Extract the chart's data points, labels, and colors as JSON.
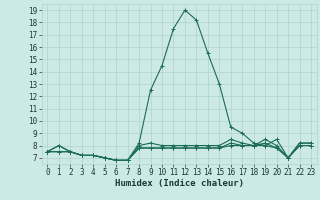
{
  "xlabel": "Humidex (Indice chaleur)",
  "ylabel": "",
  "bg_color": "#cce9e5",
  "grid_color": "#aed4cf",
  "line_color": "#1a6b5a",
  "x_values": [
    0,
    1,
    2,
    3,
    4,
    5,
    6,
    7,
    8,
    9,
    10,
    11,
    12,
    13,
    14,
    15,
    16,
    17,
    18,
    19,
    20,
    21,
    22,
    23
  ],
  "series": [
    [
      7.5,
      8.0,
      7.5,
      7.2,
      7.2,
      7.0,
      6.8,
      6.8,
      8.0,
      8.2,
      8.0,
      8.0,
      8.0,
      8.0,
      8.0,
      8.0,
      8.5,
      8.2,
      8.0,
      8.5,
      8.0,
      7.0,
      8.2,
      8.2
    ],
    [
      7.5,
      7.5,
      7.5,
      7.2,
      7.2,
      7.0,
      6.8,
      6.8,
      7.8,
      7.8,
      7.8,
      7.8,
      7.8,
      7.8,
      7.8,
      7.8,
      8.2,
      8.0,
      8.0,
      8.2,
      7.8,
      7.0,
      8.0,
      8.0
    ],
    [
      7.5,
      7.5,
      7.5,
      7.2,
      7.2,
      7.0,
      6.8,
      6.8,
      7.8,
      7.8,
      7.8,
      7.8,
      7.8,
      7.8,
      7.8,
      7.8,
      8.0,
      8.0,
      8.0,
      8.0,
      7.8,
      7.0,
      8.0,
      8.0
    ],
    [
      7.5,
      8.0,
      7.5,
      7.2,
      7.2,
      7.0,
      6.8,
      6.8,
      8.2,
      12.5,
      14.5,
      17.5,
      19.0,
      18.2,
      15.5,
      13.0,
      9.5,
      9.0,
      8.2,
      8.0,
      8.5,
      7.0,
      8.2,
      8.2
    ]
  ],
  "ylim": [
    6.5,
    19.5
  ],
  "xlim": [
    -0.5,
    23.5
  ],
  "yticks": [
    7,
    8,
    9,
    10,
    11,
    12,
    13,
    14,
    15,
    16,
    17,
    18,
    19
  ],
  "xticks": [
    0,
    1,
    2,
    3,
    4,
    5,
    6,
    7,
    8,
    9,
    10,
    11,
    12,
    13,
    14,
    15,
    16,
    17,
    18,
    19,
    20,
    21,
    22,
    23
  ],
  "tick_fontsize": 5.5,
  "label_fontsize": 6.5
}
